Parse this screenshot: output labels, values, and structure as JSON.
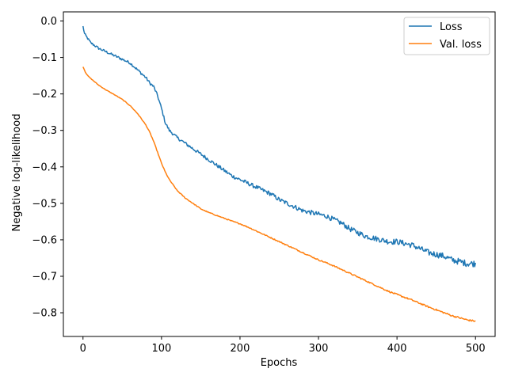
{
  "chart_data": {
    "type": "line",
    "title": "",
    "xlabel": "Epochs",
    "ylabel": "Negative log-likelihood",
    "xlim": [
      -25,
      525
    ],
    "ylim": [
      -0.865,
      0.025
    ],
    "xticks": [
      0,
      100,
      200,
      300,
      400,
      500
    ],
    "xtick_labels": [
      "0",
      "100",
      "200",
      "300",
      "400",
      "500"
    ],
    "yticks": [
      0.0,
      -0.1,
      -0.2,
      -0.3,
      -0.4,
      -0.5,
      -0.6,
      -0.7,
      -0.8
    ],
    "ytick_labels": [
      "0.0",
      "−0.1",
      "−0.2",
      "−0.3",
      "−0.4",
      "−0.5",
      "−0.6",
      "−0.7",
      "−0.8"
    ],
    "grid": false,
    "legend": {
      "position": "top-right"
    },
    "series": [
      {
        "name": "Loss",
        "color": "#1f77b4",
        "noise": 0.006,
        "x": [
          0,
          2,
          5,
          10,
          20,
          30,
          40,
          50,
          60,
          65,
          70,
          75,
          80,
          85,
          90,
          95,
          100,
          105,
          110,
          120,
          130,
          140,
          150,
          160,
          170,
          180,
          190,
          200,
          210,
          220,
          230,
          240,
          250,
          260,
          270,
          280,
          290,
          300,
          310,
          320,
          330,
          340,
          350,
          360,
          370,
          380,
          390,
          400,
          410,
          420,
          430,
          440,
          450,
          460,
          470,
          480,
          490,
          500
        ],
        "y": [
          -0.015,
          -0.035,
          -0.045,
          -0.06,
          -0.075,
          -0.085,
          -0.095,
          -0.105,
          -0.115,
          -0.125,
          -0.135,
          -0.145,
          -0.155,
          -0.17,
          -0.18,
          -0.205,
          -0.24,
          -0.28,
          -0.3,
          -0.32,
          -0.335,
          -0.35,
          -0.365,
          -0.38,
          -0.395,
          -0.41,
          -0.425,
          -0.435,
          -0.445,
          -0.455,
          -0.465,
          -0.475,
          -0.49,
          -0.5,
          -0.51,
          -0.52,
          -0.525,
          -0.53,
          -0.535,
          -0.545,
          -0.555,
          -0.57,
          -0.58,
          -0.59,
          -0.595,
          -0.6,
          -0.605,
          -0.605,
          -0.61,
          -0.615,
          -0.625,
          -0.635,
          -0.64,
          -0.645,
          -0.655,
          -0.66,
          -0.665,
          -0.665
        ]
      },
      {
        "name": "Val. loss",
        "color": "#ff7f0e",
        "noise": 0.0015,
        "x": [
          0,
          3,
          6,
          10,
          15,
          20,
          30,
          40,
          50,
          60,
          70,
          80,
          85,
          90,
          95,
          100,
          105,
          110,
          120,
          130,
          140,
          150,
          160,
          170,
          180,
          190,
          200,
          210,
          220,
          230,
          240,
          250,
          260,
          270,
          280,
          290,
          300,
          310,
          320,
          330,
          340,
          350,
          360,
          370,
          380,
          390,
          400,
          410,
          420,
          430,
          440,
          450,
          460,
          470,
          480,
          490,
          500
        ],
        "y": [
          -0.125,
          -0.14,
          -0.15,
          -0.158,
          -0.167,
          -0.176,
          -0.19,
          -0.202,
          -0.215,
          -0.232,
          -0.255,
          -0.285,
          -0.305,
          -0.33,
          -0.36,
          -0.39,
          -0.415,
          -0.435,
          -0.465,
          -0.485,
          -0.5,
          -0.515,
          -0.525,
          -0.533,
          -0.541,
          -0.549,
          -0.556,
          -0.565,
          -0.575,
          -0.585,
          -0.595,
          -0.605,
          -0.615,
          -0.625,
          -0.635,
          -0.645,
          -0.655,
          -0.663,
          -0.672,
          -0.682,
          -0.692,
          -0.702,
          -0.712,
          -0.722,
          -0.732,
          -0.742,
          -0.75,
          -0.758,
          -0.766,
          -0.775,
          -0.784,
          -0.792,
          -0.8,
          -0.808,
          -0.814,
          -0.82,
          -0.823
        ]
      }
    ]
  }
}
